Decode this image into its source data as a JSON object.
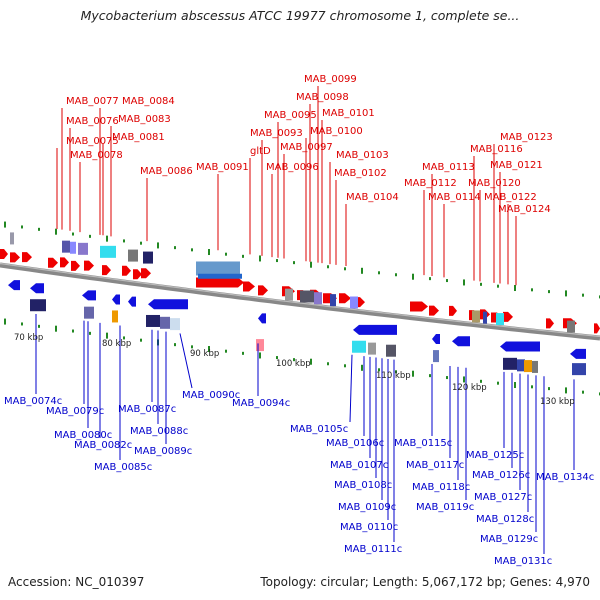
{
  "title": "Mycobacterium abscessus ATCC 19977 chromosome 1, complete se...",
  "footer": {
    "accession": "Accession: NC_010397",
    "info": "Topology: circular; Length: 5,067,172 bp; Genes: 4,970"
  },
  "colors": {
    "forward_label": "#dd0000",
    "reverse_label": "#0000cc",
    "forward_gene": "#ee0000",
    "reverse_gene": "#1111dd",
    "backbone": "#888888",
    "tick": "#228822"
  },
  "scale_ticks": [
    "70 kbp",
    "80 kbp",
    "90 kbp",
    "100 kbp",
    "110 kbp",
    "120 kbp",
    "130 kbp"
  ],
  "forward_labels": [
    "MAB_0077",
    "MAB_0076",
    "MAB_0075",
    "MAB_0078",
    "MAB_0084",
    "MAB_0083",
    "MAB_0081",
    "MAB_0086",
    "MAB_0091",
    "MAB_0099",
    "MAB_0098",
    "MAB_0095",
    "MAB_0093",
    "MAB_0101",
    "MAB_0100",
    "gltD",
    "MAB_0097",
    "MAB_0096",
    "MAB_0103",
    "MAB_0102",
    "MAB_0104",
    "MAB_0123",
    "MAB_0116",
    "MAB_0113",
    "MAB_0121",
    "MAB_0112",
    "MAB_0120",
    "MAB_0114",
    "MAB_0122",
    "MAB_0124"
  ],
  "reverse_labels": [
    "MAB_0074c",
    "MAB_0079c",
    "MAB_0080c",
    "MAB_0082c",
    "MAB_0085c",
    "MAB_0087c",
    "MAB_0088c",
    "MAB_0089c",
    "MAB_0090c",
    "MAB_0094c",
    "MAB_0105c",
    "MAB_0106c",
    "MAB_0107c",
    "MAB_0108c",
    "MAB_0109c",
    "MAB_0110c",
    "MAB_0111c",
    "MAB_0115c",
    "MAB_0117c",
    "MAB_0118c",
    "MAB_0119c",
    "MAB_0125c",
    "MAB_0126c",
    "MAB_0127c",
    "MAB_0128c",
    "MAB_0129c",
    "MAB_0131c",
    "MAB_0134c"
  ]
}
